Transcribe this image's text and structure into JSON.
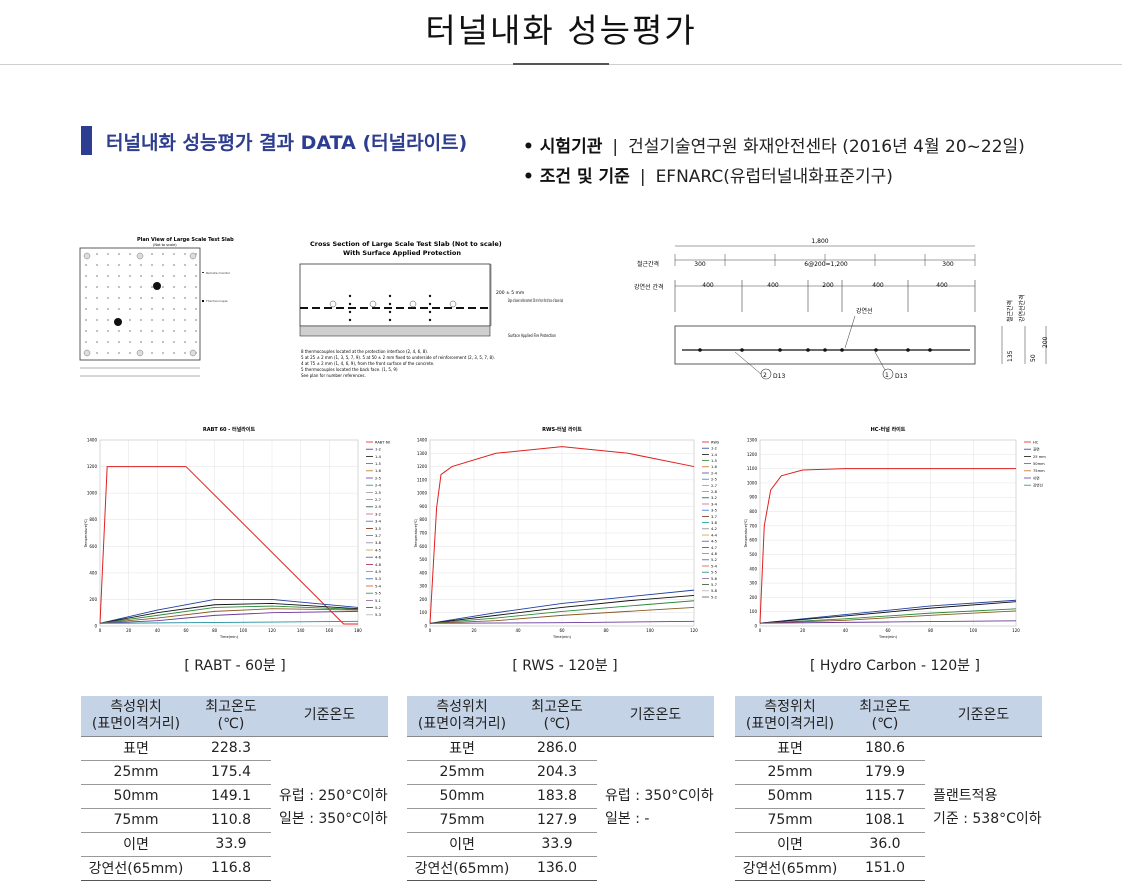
{
  "page": {
    "title": "터널내화 성능평가"
  },
  "section": {
    "heading": "터널내화 성능평가 결과 DATA (터널라이트)",
    "info": [
      {
        "label": "• 시험기관",
        "value": "건설기술연구원 화재안전센타 (2016년 4월 20~22일)"
      },
      {
        "label": "• 조건 및 기준",
        "value": "EFNARC(유럽터널내화표준기구)"
      }
    ]
  },
  "diagrams": {
    "plan": {
      "title": "Plan View of Large Scale Test Slab",
      "subtitle": "(Not to scale)"
    },
    "cross": {
      "title": "Cross Section of Large Scale Test Slab (Not to scale)",
      "subtitle": "With Surface Applied Protection",
      "dim": "200 ± 5 mm",
      "edge_note": "Edge of lower reinforcement 50 mm from front face of base slab",
      "protection": "Surface Applied Fire Protection",
      "notes": [
        "8 thermocouples located at the protection interface (2, 4, 6, 8).",
        "5 at 25 ± 2 mm (1, 3, 5, 7, 9). 5 at 50 ± 2 mm fixed to underside of reinforcement (2, 3, 5, 7, 8).",
        "4 at 75 ± 2 mm (1, 4, 6, 9), from the front surface of the concrete.",
        "5 thermocouples located the back face. (1, 5, 9)",
        "See plan for number references."
      ]
    },
    "rebar": {
      "total": "1,800",
      "row1_label": "철근간격",
      "row1": [
        "300",
        "6@200=1,200",
        "300"
      ],
      "row2_label": "강연선 간격",
      "row2": [
        "400",
        "400",
        "200",
        "400",
        "400"
      ],
      "strand": "강연선",
      "bar1": "D13",
      "bar2": "D13",
      "dims": [
        "50",
        "135",
        "200"
      ],
      "vert_labels": [
        "철근간격",
        "강연선간격"
      ]
    }
  },
  "charts": [
    {
      "caption": "[ RABT - 60분 ]",
      "title": "RABT 60 - 터널라이트"
    },
    {
      "caption": "[ RWS - 120분 ]",
      "title": "RWS-터널 라이트"
    },
    {
      "caption": "[ Hydro Carbon - 120분 ]",
      "title": "HC-터널 라이트"
    }
  ],
  "chart_data": [
    {
      "type": "line",
      "title": "RABT 60 - 터널라이트",
      "xlabel": "Time(min)",
      "ylabel": "Temperature(℃)",
      "xlim": [
        0,
        180
      ],
      "ylim": [
        0,
        1400
      ],
      "xticks": [
        0,
        20,
        40,
        60,
        80,
        100,
        120,
        140,
        160,
        180
      ],
      "yticks": [
        0,
        200,
        400,
        600,
        800,
        1000,
        1200,
        1400
      ],
      "legend": [
        "RABT 60",
        "1-2",
        "1-4",
        "1-5",
        "1-6",
        "2-5",
        "2-4",
        "2-5",
        "2-7",
        "2-9",
        "3-2",
        "3-4",
        "3-5",
        "3-7",
        "3-8",
        "4-5",
        "4-6",
        "4-8",
        "4-9",
        "5-3",
        "5-4",
        "5-5",
        "5-1",
        "5-2",
        "5-3"
      ],
      "series": [
        {
          "name": "RABT 60",
          "x": [
            0,
            5,
            60,
            170,
            180
          ],
          "y": [
            20,
            1200,
            1200,
            15,
            15
          ]
        },
        {
          "name": "1-2",
          "x": [
            0,
            40,
            80,
            120,
            180
          ],
          "y": [
            20,
            120,
            200,
            200,
            140
          ]
        },
        {
          "name": "1-4",
          "x": [
            0,
            40,
            80,
            120,
            180
          ],
          "y": [
            20,
            100,
            160,
            170,
            130
          ]
        },
        {
          "name": "1-5",
          "x": [
            0,
            40,
            80,
            120,
            180
          ],
          "y": [
            20,
            80,
            140,
            150,
            125
          ]
        },
        {
          "name": "1-6",
          "x": [
            0,
            40,
            80,
            120,
            180
          ],
          "y": [
            20,
            60,
            110,
            130,
            120
          ]
        },
        {
          "name": "2-5",
          "x": [
            0,
            40,
            80,
            120,
            180
          ],
          "y": [
            20,
            40,
            80,
            100,
            110
          ]
        },
        {
          "name": "2-4",
          "x": [
            0,
            60,
            120,
            180
          ],
          "y": [
            20,
            25,
            30,
            35
          ]
        }
      ]
    },
    {
      "type": "line",
      "title": "RWS-터널 라이트",
      "xlabel": "Time(min)",
      "ylabel": "Temperature(℃)",
      "xlim": [
        0,
        120
      ],
      "ylim": [
        0,
        1400
      ],
      "xticks": [
        0,
        20,
        40,
        60,
        80,
        100,
        120
      ],
      "yticks": [
        0,
        100,
        200,
        300,
        400,
        500,
        600,
        700,
        800,
        900,
        1000,
        1100,
        1200,
        1300,
        1400
      ],
      "legend": [
        "RWS",
        "1-2",
        "1-4",
        "1-5",
        "1-6",
        "2-4",
        "2-5",
        "2-7",
        "2-8",
        "3-2",
        "3-4",
        "3-5",
        "3-7",
        "3-8",
        "4-2",
        "4-4",
        "4-5",
        "4-7",
        "4-8",
        "5-2",
        "5-4",
        "5-5",
        "5-6",
        "5-7",
        "5-8",
        "5-2"
      ],
      "series": [
        {
          "name": "RWS",
          "x": [
            0,
            3,
            5,
            10,
            30,
            60,
            90,
            120
          ],
          "y": [
            20,
            890,
            1140,
            1200,
            1300,
            1350,
            1300,
            1200
          ]
        },
        {
          "name": "1-2",
          "x": [
            0,
            30,
            60,
            90,
            120
          ],
          "y": [
            20,
            100,
            170,
            220,
            270
          ]
        },
        {
          "name": "1-4",
          "x": [
            0,
            30,
            60,
            90,
            120
          ],
          "y": [
            20,
            80,
            140,
            190,
            230
          ]
        },
        {
          "name": "1-5",
          "x": [
            0,
            30,
            60,
            90,
            120
          ],
          "y": [
            20,
            60,
            110,
            150,
            190
          ]
        },
        {
          "name": "1-6",
          "x": [
            0,
            30,
            60,
            90,
            120
          ],
          "y": [
            20,
            40,
            80,
            110,
            140
          ]
        },
        {
          "name": "2-4",
          "x": [
            0,
            60,
            120
          ],
          "y": [
            20,
            25,
            35
          ]
        }
      ]
    },
    {
      "type": "line",
      "title": "HC-터널 라이트",
      "xlabel": "Time(min)",
      "ylabel": "Temperature(℃)",
      "xlim": [
        0,
        120
      ],
      "ylim": [
        0,
        1300
      ],
      "xticks": [
        0,
        20,
        40,
        60,
        80,
        100,
        120
      ],
      "yticks": [
        0,
        100,
        200,
        300,
        400,
        500,
        600,
        700,
        800,
        900,
        1000,
        1100,
        1200,
        1300
      ],
      "legend": [
        "HC",
        "표면",
        "25 mm",
        "50mm",
        "75mm",
        "이면",
        "강연선"
      ],
      "series": [
        {
          "name": "HC",
          "x": [
            0,
            2,
            5,
            10,
            20,
            40,
            120
          ],
          "y": [
            20,
            700,
            950,
            1050,
            1090,
            1100,
            1100
          ]
        },
        {
          "name": "표면",
          "x": [
            0,
            40,
            80,
            120
          ],
          "y": [
            20,
            80,
            140,
            180
          ]
        },
        {
          "name": "25 mm",
          "x": [
            0,
            40,
            80,
            120
          ],
          "y": [
            20,
            70,
            125,
            170
          ]
        },
        {
          "name": "50mm",
          "x": [
            0,
            40,
            80,
            120
          ],
          "y": [
            20,
            50,
            90,
            120
          ]
        },
        {
          "name": "75mm",
          "x": [
            0,
            40,
            80,
            120
          ],
          "y": [
            20,
            40,
            75,
            105
          ]
        },
        {
          "name": "이면",
          "x": [
            0,
            60,
            120
          ],
          "y": [
            20,
            28,
            36
          ]
        }
      ]
    }
  ],
  "tables": [
    {
      "headers": [
        "측성위치\n(표면이격거리)",
        "최고온도\n(℃)",
        "기준온도"
      ],
      "rows": [
        [
          "표면",
          "228.3"
        ],
        [
          "25mm",
          "175.4"
        ],
        [
          "50mm",
          "149.1"
        ],
        [
          "75mm",
          "110.8"
        ],
        [
          "이면",
          "33.9"
        ],
        [
          "강연선(65mm)",
          "116.8"
        ]
      ],
      "standard": [
        "유럽 : 250°C이하",
        "일본 : 350°C이하"
      ]
    },
    {
      "headers": [
        "측성위치\n(표면이격거리)",
        "최고온도\n(℃)",
        "기준온도"
      ],
      "rows": [
        [
          "표면",
          "286.0"
        ],
        [
          "25mm",
          "204.3"
        ],
        [
          "50mm",
          "183.8"
        ],
        [
          "75mm",
          "127.9"
        ],
        [
          "이면",
          "33.9"
        ],
        [
          "강연선(65mm)",
          "136.0"
        ]
      ],
      "standard": [
        "유럽 : 350°C이하",
        "일본 : -"
      ]
    },
    {
      "headers": [
        "측정위치\n(표면이격거리)",
        "최고온도\n(℃)",
        "기준온도"
      ],
      "rows": [
        [
          "표면",
          "180.6"
        ],
        [
          "25mm",
          "179.9"
        ],
        [
          "50mm",
          "115.7"
        ],
        [
          "75mm",
          "108.1"
        ],
        [
          "이면",
          "36.0"
        ],
        [
          "강연선(65mm)",
          "151.0"
        ]
      ],
      "standard": [
        "플랜트적용",
        "기준 : 538°C이하"
      ]
    }
  ],
  "colors": {
    "accent": "#2d3d8f",
    "table_header": "#c5d3e6",
    "fire_curve": "#e02020"
  }
}
